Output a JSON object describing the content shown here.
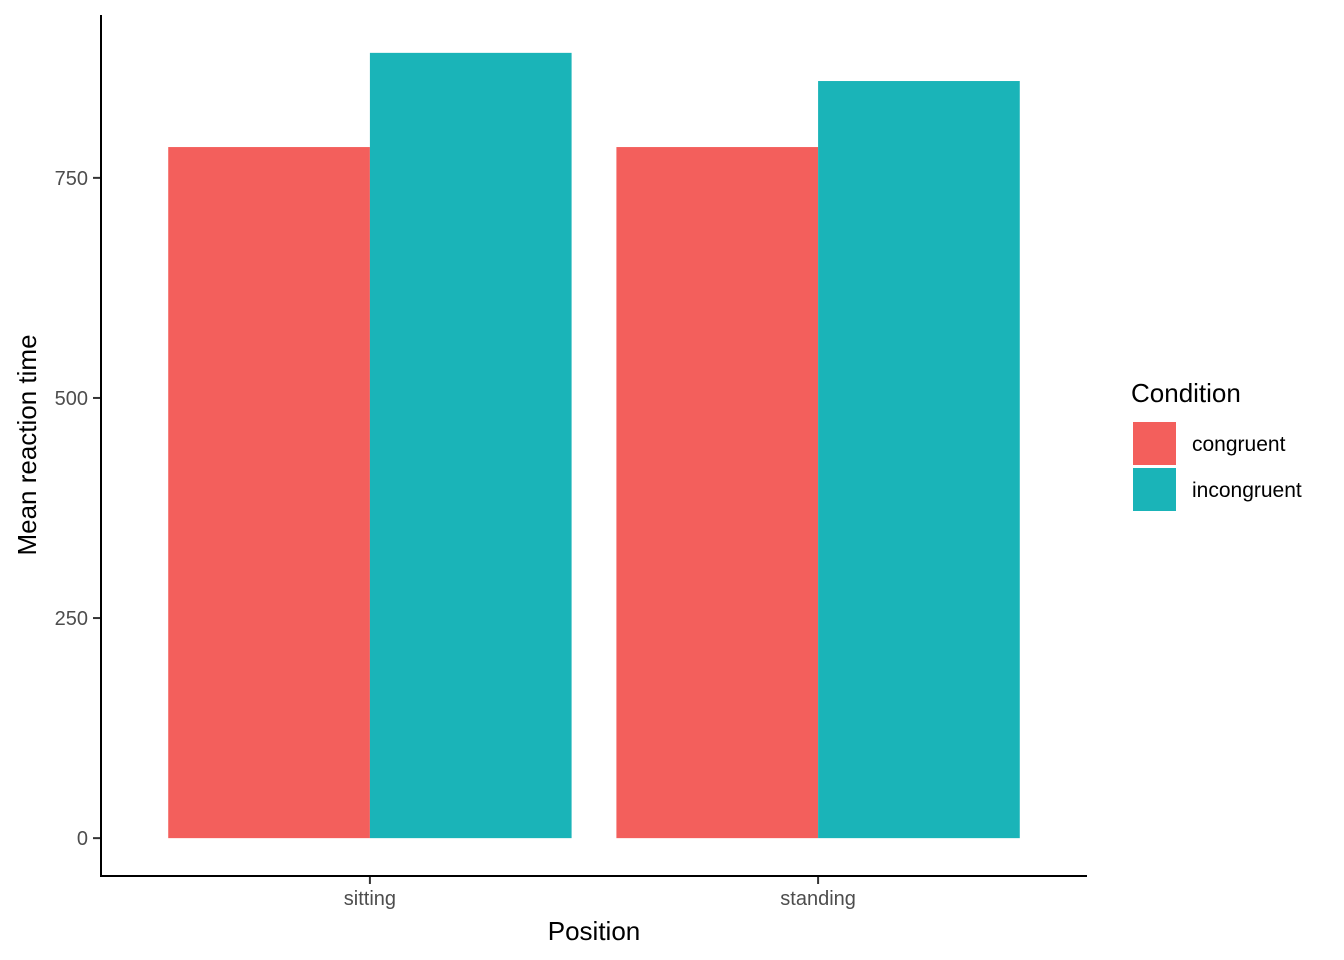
{
  "chart_data": {
    "type": "bar",
    "categories": [
      "sitting",
      "standing"
    ],
    "series": [
      {
        "name": "congruent",
        "color": "#F35F5C",
        "values": [
          785,
          785
        ]
      },
      {
        "name": "incongruent",
        "color": "#1AB4B8",
        "values": [
          892,
          860
        ]
      }
    ],
    "xlabel": "Position",
    "ylabel": "Mean reaction time",
    "yticks": [
      0,
      250,
      500,
      750
    ],
    "ytick_labels": [
      "0",
      "250",
      "500",
      "750"
    ],
    "ylim": [
      -43,
      935
    ],
    "grid": false,
    "legend": {
      "title": "Condition",
      "placement": "right"
    }
  }
}
